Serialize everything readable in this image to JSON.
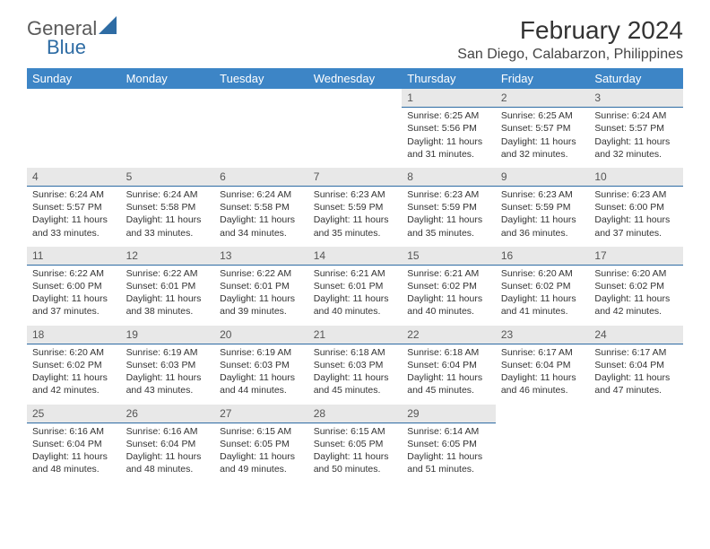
{
  "brand": {
    "general": "General",
    "blue": "Blue",
    "accent_color": "#2e6ca4"
  },
  "title": "February 2024",
  "location": "San Diego, Calabarzon, Philippines",
  "header_bg": "#3d85c6",
  "header_fg": "#ffffff",
  "daynum_bg": "#e8e8e8",
  "daynum_border": "#2e6ca4",
  "text_color": "#333333",
  "columns": [
    "Sunday",
    "Monday",
    "Tuesday",
    "Wednesday",
    "Thursday",
    "Friday",
    "Saturday"
  ],
  "weeks": [
    [
      null,
      null,
      null,
      null,
      {
        "d": "1",
        "sr": "6:25 AM",
        "ss": "5:56 PM",
        "dl": "11 hours and 31 minutes."
      },
      {
        "d": "2",
        "sr": "6:25 AM",
        "ss": "5:57 PM",
        "dl": "11 hours and 32 minutes."
      },
      {
        "d": "3",
        "sr": "6:24 AM",
        "ss": "5:57 PM",
        "dl": "11 hours and 32 minutes."
      }
    ],
    [
      {
        "d": "4",
        "sr": "6:24 AM",
        "ss": "5:57 PM",
        "dl": "11 hours and 33 minutes."
      },
      {
        "d": "5",
        "sr": "6:24 AM",
        "ss": "5:58 PM",
        "dl": "11 hours and 33 minutes."
      },
      {
        "d": "6",
        "sr": "6:24 AM",
        "ss": "5:58 PM",
        "dl": "11 hours and 34 minutes."
      },
      {
        "d": "7",
        "sr": "6:23 AM",
        "ss": "5:59 PM",
        "dl": "11 hours and 35 minutes."
      },
      {
        "d": "8",
        "sr": "6:23 AM",
        "ss": "5:59 PM",
        "dl": "11 hours and 35 minutes."
      },
      {
        "d": "9",
        "sr": "6:23 AM",
        "ss": "5:59 PM",
        "dl": "11 hours and 36 minutes."
      },
      {
        "d": "10",
        "sr": "6:23 AM",
        "ss": "6:00 PM",
        "dl": "11 hours and 37 minutes."
      }
    ],
    [
      {
        "d": "11",
        "sr": "6:22 AM",
        "ss": "6:00 PM",
        "dl": "11 hours and 37 minutes."
      },
      {
        "d": "12",
        "sr": "6:22 AM",
        "ss": "6:01 PM",
        "dl": "11 hours and 38 minutes."
      },
      {
        "d": "13",
        "sr": "6:22 AM",
        "ss": "6:01 PM",
        "dl": "11 hours and 39 minutes."
      },
      {
        "d": "14",
        "sr": "6:21 AM",
        "ss": "6:01 PM",
        "dl": "11 hours and 40 minutes."
      },
      {
        "d": "15",
        "sr": "6:21 AM",
        "ss": "6:02 PM",
        "dl": "11 hours and 40 minutes."
      },
      {
        "d": "16",
        "sr": "6:20 AM",
        "ss": "6:02 PM",
        "dl": "11 hours and 41 minutes."
      },
      {
        "d": "17",
        "sr": "6:20 AM",
        "ss": "6:02 PM",
        "dl": "11 hours and 42 minutes."
      }
    ],
    [
      {
        "d": "18",
        "sr": "6:20 AM",
        "ss": "6:02 PM",
        "dl": "11 hours and 42 minutes."
      },
      {
        "d": "19",
        "sr": "6:19 AM",
        "ss": "6:03 PM",
        "dl": "11 hours and 43 minutes."
      },
      {
        "d": "20",
        "sr": "6:19 AM",
        "ss": "6:03 PM",
        "dl": "11 hours and 44 minutes."
      },
      {
        "d": "21",
        "sr": "6:18 AM",
        "ss": "6:03 PM",
        "dl": "11 hours and 45 minutes."
      },
      {
        "d": "22",
        "sr": "6:18 AM",
        "ss": "6:04 PM",
        "dl": "11 hours and 45 minutes."
      },
      {
        "d": "23",
        "sr": "6:17 AM",
        "ss": "6:04 PM",
        "dl": "11 hours and 46 minutes."
      },
      {
        "d": "24",
        "sr": "6:17 AM",
        "ss": "6:04 PM",
        "dl": "11 hours and 47 minutes."
      }
    ],
    [
      {
        "d": "25",
        "sr": "6:16 AM",
        "ss": "6:04 PM",
        "dl": "11 hours and 48 minutes."
      },
      {
        "d": "26",
        "sr": "6:16 AM",
        "ss": "6:04 PM",
        "dl": "11 hours and 48 minutes."
      },
      {
        "d": "27",
        "sr": "6:15 AM",
        "ss": "6:05 PM",
        "dl": "11 hours and 49 minutes."
      },
      {
        "d": "28",
        "sr": "6:15 AM",
        "ss": "6:05 PM",
        "dl": "11 hours and 50 minutes."
      },
      {
        "d": "29",
        "sr": "6:14 AM",
        "ss": "6:05 PM",
        "dl": "11 hours and 51 minutes."
      },
      null,
      null
    ]
  ],
  "labels": {
    "sunrise": "Sunrise:",
    "sunset": "Sunset:",
    "daylight": "Daylight:"
  }
}
